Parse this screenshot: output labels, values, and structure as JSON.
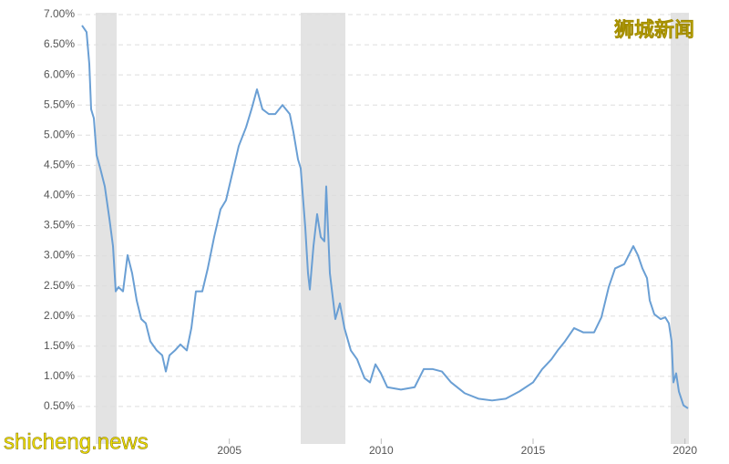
{
  "chart_data": {
    "type": "line",
    "ylim": [
      0,
      7
    ],
    "yticks": [
      {
        "value": 0.5,
        "label": "0.50%"
      },
      {
        "value": 1,
        "label": "1.00%"
      },
      {
        "value": 1.5,
        "label": "1.50%"
      },
      {
        "value": 2,
        "label": "2.00%"
      },
      {
        "value": 2.5,
        "label": "2.50%"
      },
      {
        "value": 3,
        "label": "3.00%"
      },
      {
        "value": 3.5,
        "label": "3.50%"
      },
      {
        "value": 4,
        "label": "4.00%"
      },
      {
        "value": 4.5,
        "label": "4.50%"
      },
      {
        "value": 5,
        "label": "5.00%"
      },
      {
        "value": 5.5,
        "label": "5.50%"
      },
      {
        "value": 6,
        "label": "6.00%"
      },
      {
        "value": 6.5,
        "label": "6.50%"
      },
      {
        "value": 7,
        "label": "7.00%"
      }
    ],
    "xlim": [
      2000,
      2020.16
    ],
    "xticks": [
      2005,
      2010,
      2015,
      2020
    ],
    "grid": true,
    "shaded_periods": [
      [
        2000.6,
        2001.29
      ],
      [
        2007.35,
        2008.82
      ],
      [
        2019.53,
        2020.13
      ]
    ],
    "shade_color": "#e3e3e3",
    "series": [
      {
        "color": "#6a9fd4",
        "x": [
          2000.15,
          2000.3,
          2000.39,
          2000.45,
          2000.54,
          2000.63,
          2000.75,
          2000.9,
          2001.05,
          2001.17,
          2001.26,
          2001.35,
          2001.5,
          2001.65,
          2001.8,
          2001.95,
          2002.1,
          2002.25,
          2002.4,
          2002.61,
          2002.79,
          2002.91,
          2003.03,
          2003.21,
          2003.39,
          2003.6,
          2003.75,
          2003.9,
          2004.11,
          2004.29,
          2004.5,
          2004.71,
          2004.89,
          2005.1,
          2005.31,
          2005.55,
          2005.73,
          2005.91,
          2006.09,
          2006.3,
          2006.51,
          2006.75,
          2006.99,
          2007.11,
          2007.26,
          2007.35,
          2007.5,
          2007.59,
          2007.65,
          2007.77,
          2007.89,
          2008.01,
          2008.13,
          2008.19,
          2008.31,
          2008.49,
          2008.64,
          2008.79,
          2009.0,
          2009.21,
          2009.45,
          2009.63,
          2009.81,
          2009.99,
          2010.2,
          2010.65,
          2011.1,
          2011.4,
          2011.7,
          2012.0,
          2012.3,
          2012.75,
          2013.2,
          2013.65,
          2014.1,
          2014.55,
          2015.0,
          2015.3,
          2015.6,
          2015.81,
          2016.05,
          2016.35,
          2016.65,
          2017.01,
          2017.25,
          2017.49,
          2017.7,
          2018.0,
          2018.15,
          2018.3,
          2018.45,
          2018.6,
          2018.75,
          2018.84,
          2018.99,
          2019.2,
          2019.35,
          2019.47,
          2019.56,
          2019.62,
          2019.71,
          2019.8,
          2019.95,
          2020.1
        ],
        "values": [
          6.82,
          6.71,
          6.18,
          5.43,
          5.28,
          4.67,
          4.45,
          4.15,
          3.62,
          3.16,
          2.41,
          2.48,
          2.41,
          3.01,
          2.71,
          2.26,
          1.95,
          1.88,
          1.58,
          1.43,
          1.35,
          1.08,
          1.35,
          1.43,
          1.53,
          1.43,
          1.8,
          2.41,
          2.41,
          2.79,
          3.31,
          3.77,
          3.92,
          4.37,
          4.82,
          5.13,
          5.43,
          5.76,
          5.43,
          5.35,
          5.35,
          5.5,
          5.35,
          5.05,
          4.6,
          4.45,
          3.47,
          2.71,
          2.44,
          3.16,
          3.69,
          3.31,
          3.24,
          4.15,
          2.71,
          1.95,
          2.21,
          1.8,
          1.43,
          1.28,
          0.97,
          0.9,
          1.2,
          1.05,
          0.82,
          0.78,
          0.82,
          1.12,
          1.12,
          1.08,
          0.9,
          0.72,
          0.63,
          0.6,
          0.63,
          0.75,
          0.9,
          1.12,
          1.28,
          1.43,
          1.58,
          1.8,
          1.73,
          1.73,
          1.98,
          2.48,
          2.79,
          2.86,
          3.01,
          3.16,
          3.01,
          2.79,
          2.63,
          2.26,
          2.03,
          1.95,
          1.98,
          1.88,
          1.58,
          0.9,
          1.05,
          0.75,
          0.52,
          0.47
        ]
      }
    ],
    "watermark_cn": "狮城新闻",
    "watermark_site": "shicheng.news"
  }
}
